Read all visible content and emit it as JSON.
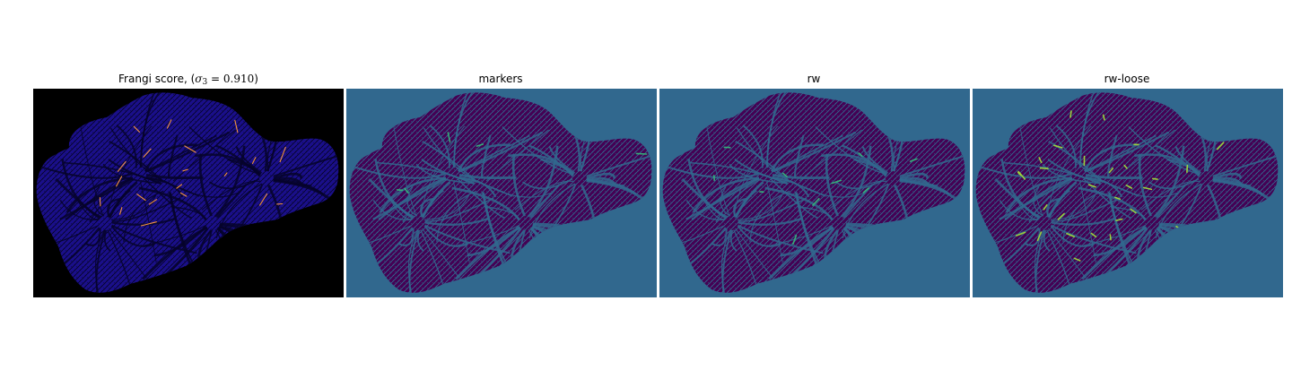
{
  "figure": {
    "panels": [
      {
        "id": "frangi",
        "title_prefix": "Frangi score, (",
        "title_symbol": "σ",
        "title_subscript": "3",
        "title_equals": " = ",
        "title_value": "0.910",
        "title_suffix": ")",
        "background": "#000000",
        "tissue": "#1a0f8a",
        "mesh": "#06032a",
        "accent": "#ff9a3c"
      },
      {
        "id": "markers",
        "title": "markers",
        "background": "#31688e",
        "tissue": "#440154",
        "mesh": "#31688e",
        "accent": "#35b779"
      },
      {
        "id": "rw",
        "title": "rw",
        "background": "#31688e",
        "tissue": "#440154",
        "mesh": "#31688e",
        "accent": "#35b779"
      },
      {
        "id": "rw-loose",
        "title": "rw-loose",
        "background": "#31688e",
        "tissue": "#440154",
        "mesh": "#31688e",
        "accent": "#a0da39"
      }
    ]
  }
}
